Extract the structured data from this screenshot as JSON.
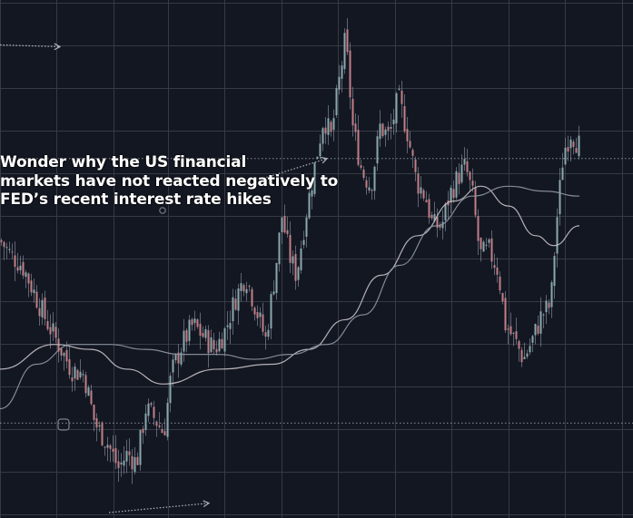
{
  "caption_lines": [
    "Wonder why the US financial",
    "markets have not reacted negatively to",
    "FED’s recent interest rate hikes"
  ],
  "colors": {
    "background": "#131722",
    "grid": "#363a45",
    "candle_up": "#8aa8ad",
    "candle_down": "#c27f86",
    "wick": "#9aa3b0",
    "ma_fast": "#c9c3c9",
    "ma_slow": "#8f96a3",
    "level_line": "#b2b5be"
  },
  "chart_data": {
    "type": "candlestick",
    "grid": true,
    "ylim": [
      0,
      1
    ],
    "moving_averages": [
      {
        "key": "ma_fast",
        "x": [
          0,
          60,
          100,
          140,
          180,
          240,
          300,
          340,
          380,
          420,
          460,
          500,
          530,
          560,
          590,
          610,
          638
        ],
        "y": [
          0.29,
          0.34,
          0.33,
          0.29,
          0.26,
          0.29,
          0.3,
          0.33,
          0.39,
          0.48,
          0.56,
          0.63,
          0.66,
          0.62,
          0.56,
          0.54,
          0.58
        ]
      },
      {
        "key": "ma_slow",
        "x": [
          0,
          40,
          80,
          120,
          160,
          200,
          240,
          280,
          320,
          360,
          400,
          440,
          480,
          520,
          560,
          600,
          638
        ],
        "y": [
          0.21,
          0.3,
          0.34,
          0.34,
          0.33,
          0.32,
          0.32,
          0.31,
          0.32,
          0.34,
          0.4,
          0.5,
          0.58,
          0.64,
          0.66,
          0.65,
          0.64
        ]
      }
    ],
    "levels": [
      {
        "y": 0.716
      },
      {
        "y": 0.181
      }
    ],
    "arrows": [
      {
        "x1": 0,
        "y1": 0.946,
        "x2": 66,
        "y2": 0.942
      },
      {
        "x1": 120,
        "y1": 0.0,
        "x2": 230,
        "y2": 0.019
      },
      {
        "x1": 290,
        "y1": 0.676,
        "x2": 360,
        "y2": 0.716
      }
    ],
    "anchors": [
      {
        "t": 0,
        "v": 0.55
      },
      {
        "t": 12,
        "v": 0.52
      },
      {
        "t": 24,
        "v": 0.5
      },
      {
        "t": 36,
        "v": 0.45
      },
      {
        "t": 50,
        "v": 0.39
      },
      {
        "t": 64,
        "v": 0.34
      },
      {
        "t": 78,
        "v": 0.29
      },
      {
        "t": 92,
        "v": 0.28
      },
      {
        "t": 104,
        "v": 0.18
      },
      {
        "t": 118,
        "v": 0.14
      },
      {
        "t": 130,
        "v": 0.09
      },
      {
        "t": 140,
        "v": 0.12
      },
      {
        "t": 150,
        "v": 0.1
      },
      {
        "t": 160,
        "v": 0.21
      },
      {
        "t": 170,
        "v": 0.19
      },
      {
        "t": 180,
        "v": 0.16
      },
      {
        "t": 188,
        "v": 0.28
      },
      {
        "t": 200,
        "v": 0.34
      },
      {
        "t": 212,
        "v": 0.38
      },
      {
        "t": 222,
        "v": 0.36
      },
      {
        "t": 236,
        "v": 0.33
      },
      {
        "t": 248,
        "v": 0.37
      },
      {
        "t": 258,
        "v": 0.43
      },
      {
        "t": 270,
        "v": 0.48
      },
      {
        "t": 280,
        "v": 0.42
      },
      {
        "t": 292,
        "v": 0.35
      },
      {
        "t": 302,
        "v": 0.48
      },
      {
        "t": 310,
        "v": 0.6
      },
      {
        "t": 318,
        "v": 0.52
      },
      {
        "t": 326,
        "v": 0.48
      },
      {
        "t": 336,
        "v": 0.6
      },
      {
        "t": 346,
        "v": 0.7
      },
      {
        "t": 356,
        "v": 0.8
      },
      {
        "t": 364,
        "v": 0.76
      },
      {
        "t": 372,
        "v": 0.86
      },
      {
        "t": 380,
        "v": 0.96
      },
      {
        "t": 388,
        "v": 0.78
      },
      {
        "t": 398,
        "v": 0.69
      },
      {
        "t": 408,
        "v": 0.66
      },
      {
        "t": 418,
        "v": 0.78
      },
      {
        "t": 428,
        "v": 0.76
      },
      {
        "t": 438,
        "v": 0.84
      },
      {
        "t": 448,
        "v": 0.77
      },
      {
        "t": 458,
        "v": 0.67
      },
      {
        "t": 468,
        "v": 0.64
      },
      {
        "t": 476,
        "v": 0.58
      },
      {
        "t": 486,
        "v": 0.58
      },
      {
        "t": 494,
        "v": 0.64
      },
      {
        "t": 504,
        "v": 0.68
      },
      {
        "t": 512,
        "v": 0.7
      },
      {
        "t": 520,
        "v": 0.64
      },
      {
        "t": 528,
        "v": 0.52
      },
      {
        "t": 538,
        "v": 0.53
      },
      {
        "t": 548,
        "v": 0.49
      },
      {
        "t": 556,
        "v": 0.38
      },
      {
        "t": 566,
        "v": 0.35
      },
      {
        "t": 576,
        "v": 0.31
      },
      {
        "t": 586,
        "v": 0.35
      },
      {
        "t": 596,
        "v": 0.4
      },
      {
        "t": 606,
        "v": 0.42
      },
      {
        "t": 612,
        "v": 0.58
      },
      {
        "t": 620,
        "v": 0.73
      },
      {
        "t": 628,
        "v": 0.77
      },
      {
        "t": 638,
        "v": 0.74
      }
    ]
  }
}
